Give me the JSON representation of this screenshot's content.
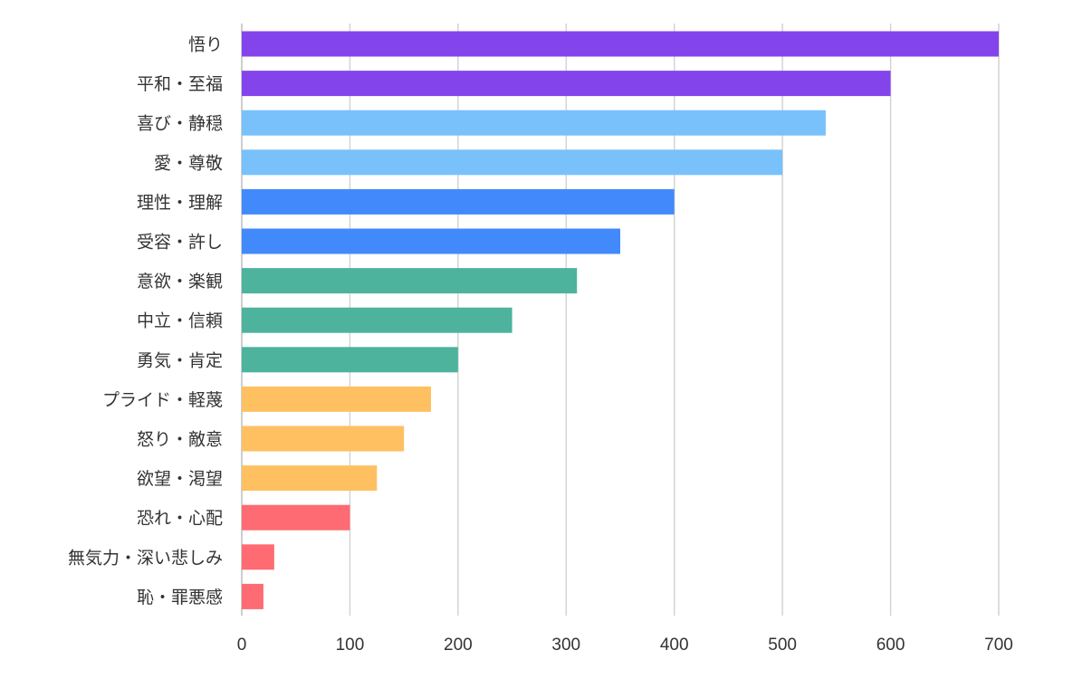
{
  "chart_data": {
    "type": "bar",
    "orientation": "horizontal",
    "title": "",
    "xlabel": "",
    "ylabel": "",
    "xlim": [
      0,
      700
    ],
    "x_ticks": [
      "0",
      "100",
      "200",
      "300",
      "400",
      "500",
      "600",
      "700"
    ],
    "grid": true,
    "legend": "none",
    "categories": [
      "悟り",
      "平和・至福",
      "喜び・静穏",
      "愛・尊敬",
      "理性・理解",
      "受容・許し",
      "意欲・楽観",
      "中立・信頼",
      "勇気・肯定",
      "プライド・軽蔑",
      "怒り・敵意",
      "欲望・渇望",
      "恐れ・心配",
      "無気力・深い悲しみ",
      "恥・罪悪感"
    ],
    "values": [
      700,
      600,
      540,
      500,
      400,
      350,
      310,
      250,
      200,
      175,
      150,
      125,
      100,
      30,
      20
    ],
    "colors": [
      "#8444ec",
      "#8444ec",
      "#79c1fb",
      "#79c1fb",
      "#428afb",
      "#428afb",
      "#4db39d",
      "#4db39d",
      "#4db39d",
      "#fec061",
      "#fec061",
      "#fec061",
      "#fe6b72",
      "#fe6b72",
      "#fe6b72"
    ]
  }
}
